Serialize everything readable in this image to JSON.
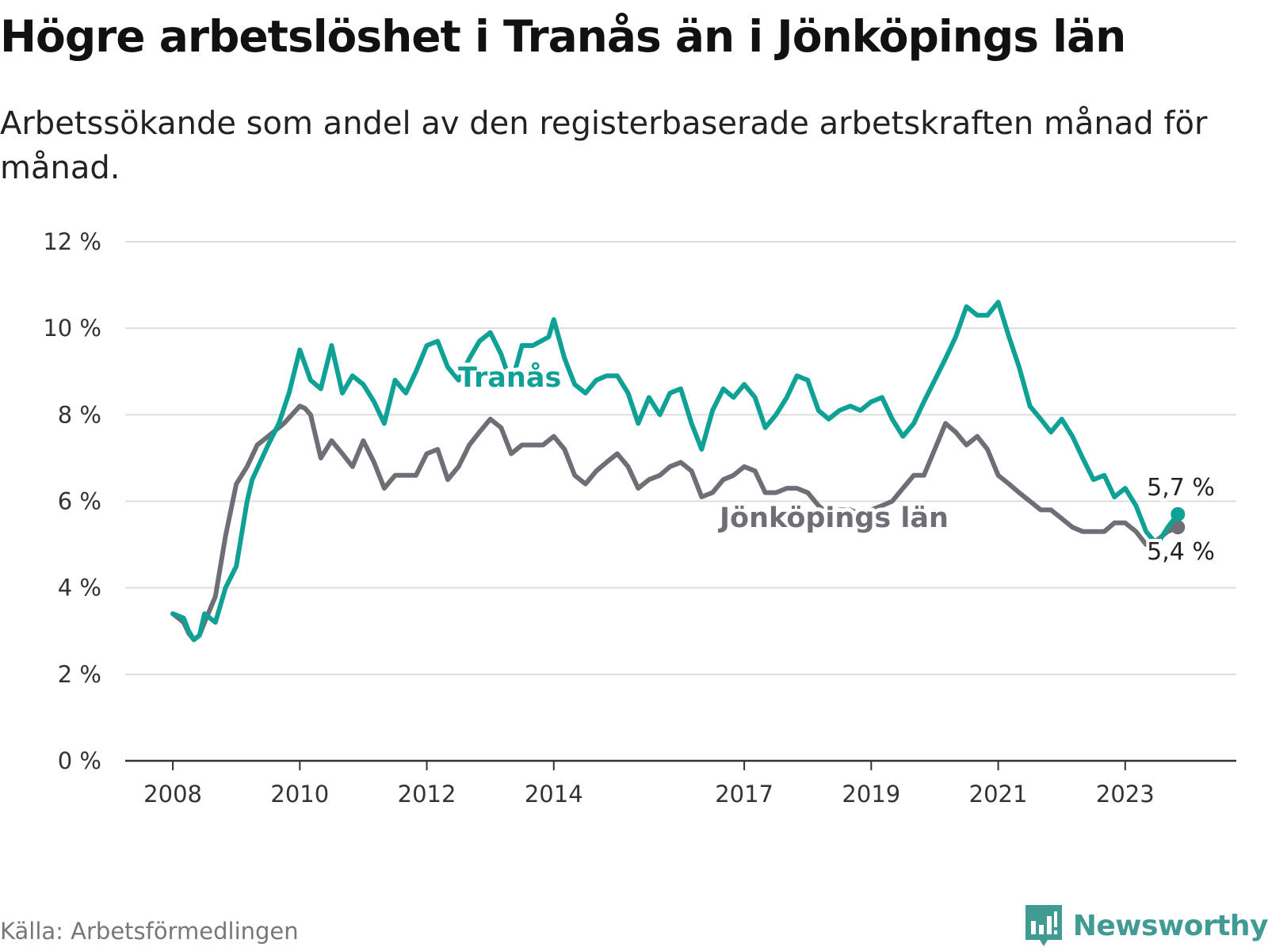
{
  "title": "Högre arbetslöshet i Tranås än i Jönköpings län",
  "subtitle": "Arbetssökande som andel av den registerbaserade arbetskraften månad för månad.",
  "source": "Källa: Arbetsförmedlingen",
  "brand": "Newsworthy",
  "icons": [
    "newsworthy-logo-icon"
  ],
  "colors": {
    "tranas": "#0fa196",
    "jonkoping": "#6e6e76",
    "grid": "#dddddd",
    "axis": "#333333",
    "brand": "#3f9b94"
  },
  "chart_data": {
    "type": "line",
    "title": "Högre arbetslöshet i Tranås än i Jönköpings län",
    "xlabel": "",
    "ylabel": "",
    "ylim": [
      0,
      12
    ],
    "xlim": [
      2007.25,
      2024.75
    ],
    "yticks": [
      0,
      2,
      4,
      6,
      8,
      10,
      12
    ],
    "ytick_labels": [
      "0 %",
      "2 %",
      "4 %",
      "6 %",
      "8 %",
      "10 %",
      "12 %"
    ],
    "xticks": [
      2008,
      2010,
      2012,
      2014,
      2017,
      2019,
      2021,
      2023
    ],
    "xtick_labels": [
      "2008",
      "2010",
      "2012",
      "2014",
      "2017",
      "2019",
      "2021",
      "2023"
    ],
    "series": [
      {
        "name": "Jönköpings län",
        "label": "Jönköpings län",
        "end_label": "5,4 %",
        "x": [
          2008.0,
          2008.17,
          2008.25,
          2008.33,
          2008.42,
          2008.5,
          2008.67,
          2008.83,
          2009.0,
          2009.17,
          2009.33,
          2009.5,
          2009.75,
          2010.0,
          2010.08,
          2010.17,
          2010.33,
          2010.5,
          2010.67,
          2010.83,
          2011.0,
          2011.17,
          2011.33,
          2011.5,
          2011.67,
          2011.83,
          2012.0,
          2012.17,
          2012.33,
          2012.5,
          2012.67,
          2012.83,
          2013.0,
          2013.17,
          2013.33,
          2013.5,
          2013.67,
          2013.83,
          2014.0,
          2014.17,
          2014.33,
          2014.5,
          2014.67,
          2014.83,
          2015.0,
          2015.17,
          2015.33,
          2015.5,
          2015.67,
          2015.83,
          2016.0,
          2016.17,
          2016.33,
          2016.5,
          2016.67,
          2016.83,
          2017.0,
          2017.17,
          2017.33,
          2017.5,
          2017.67,
          2017.83,
          2018.0,
          2018.17,
          2018.33,
          2018.5,
          2018.67,
          2018.83,
          2019.0,
          2019.17,
          2019.33,
          2019.5,
          2019.67,
          2019.83,
          2020.0,
          2020.17,
          2020.33,
          2020.5,
          2020.67,
          2020.83,
          2021.0,
          2021.17,
          2021.33,
          2021.5,
          2021.67,
          2021.83,
          2022.0,
          2022.17,
          2022.33,
          2022.5,
          2022.67,
          2022.83,
          2023.0,
          2023.17,
          2023.33,
          2023.5,
          2023.67,
          2023.83
        ],
        "values": [
          3.4,
          3.2,
          2.95,
          2.8,
          2.9,
          3.2,
          3.8,
          5.2,
          6.4,
          6.8,
          7.3,
          7.5,
          7.8,
          8.2,
          8.15,
          8.0,
          7.0,
          7.4,
          7.1,
          6.8,
          7.4,
          6.9,
          6.3,
          6.6,
          6.6,
          6.6,
          7.1,
          7.2,
          6.5,
          6.8,
          7.3,
          7.6,
          7.9,
          7.7,
          7.1,
          7.3,
          7.3,
          7.3,
          7.5,
          7.2,
          6.6,
          6.4,
          6.7,
          6.9,
          7.1,
          6.8,
          6.3,
          6.5,
          6.6,
          6.8,
          6.9,
          6.7,
          6.1,
          6.2,
          6.5,
          6.6,
          6.8,
          6.7,
          6.2,
          6.2,
          6.3,
          6.3,
          6.2,
          5.9,
          5.7,
          5.8,
          5.8,
          5.7,
          5.8,
          5.9,
          6.0,
          6.3,
          6.6,
          6.6,
          7.2,
          7.8,
          7.6,
          7.3,
          7.5,
          7.2,
          6.6,
          6.4,
          6.2,
          6.0,
          5.8,
          5.8,
          5.6,
          5.4,
          5.3,
          5.3,
          5.3,
          5.5,
          5.5,
          5.3,
          5.0,
          5.1,
          5.3,
          5.4
        ]
      },
      {
        "name": "Tranås",
        "label": "Tranås",
        "end_label": "5,7 %",
        "x": [
          2008.0,
          2008.17,
          2008.25,
          2008.33,
          2008.42,
          2008.5,
          2008.67,
          2008.83,
          2009.0,
          2009.17,
          2009.25,
          2009.5,
          2009.67,
          2009.83,
          2010.0,
          2010.17,
          2010.33,
          2010.5,
          2010.67,
          2010.83,
          2011.0,
          2011.17,
          2011.33,
          2011.5,
          2011.67,
          2011.83,
          2012.0,
          2012.17,
          2012.33,
          2012.5,
          2012.67,
          2012.83,
          2013.0,
          2013.17,
          2013.33,
          2013.5,
          2013.67,
          2013.92,
          2014.0,
          2014.17,
          2014.33,
          2014.5,
          2014.67,
          2014.83,
          2015.0,
          2015.17,
          2015.33,
          2015.5,
          2015.67,
          2015.83,
          2016.0,
          2016.17,
          2016.33,
          2016.5,
          2016.67,
          2016.83,
          2017.0,
          2017.17,
          2017.33,
          2017.5,
          2017.67,
          2017.83,
          2018.0,
          2018.17,
          2018.33,
          2018.5,
          2018.67,
          2018.83,
          2019.0,
          2019.17,
          2019.33,
          2019.5,
          2019.67,
          2019.83,
          2020.0,
          2020.17,
          2020.33,
          2020.5,
          2020.67,
          2020.83,
          2021.0,
          2021.17,
          2021.33,
          2021.5,
          2021.67,
          2021.83,
          2022.0,
          2022.17,
          2022.33,
          2022.5,
          2022.67,
          2022.83,
          2023.0,
          2023.17,
          2023.33,
          2023.5,
          2023.67,
          2023.83
        ],
        "values": [
          3.4,
          3.3,
          3.0,
          2.8,
          2.9,
          3.4,
          3.2,
          4.0,
          4.5,
          6.0,
          6.5,
          7.3,
          7.8,
          8.5,
          9.5,
          8.8,
          8.6,
          9.6,
          8.5,
          8.9,
          8.7,
          8.3,
          7.8,
          8.8,
          8.5,
          9.0,
          9.6,
          9.7,
          9.1,
          8.8,
          9.3,
          9.7,
          9.9,
          9.4,
          8.7,
          9.6,
          9.6,
          9.8,
          10.2,
          9.3,
          8.7,
          8.5,
          8.8,
          8.9,
          8.9,
          8.5,
          7.8,
          8.4,
          8.0,
          8.5,
          8.6,
          7.8,
          7.2,
          8.1,
          8.6,
          8.4,
          8.7,
          8.4,
          7.7,
          8.0,
          8.4,
          8.9,
          8.8,
          8.1,
          7.9,
          8.1,
          8.2,
          8.1,
          8.3,
          8.4,
          7.9,
          7.5,
          7.8,
          8.3,
          8.8,
          9.3,
          9.8,
          10.5,
          10.3,
          10.3,
          10.6,
          9.8,
          9.1,
          8.2,
          7.9,
          7.6,
          7.9,
          7.5,
          7.0,
          6.5,
          6.6,
          6.1,
          6.3,
          5.9,
          5.3,
          5.0,
          5.4,
          5.7
        ]
      }
    ]
  }
}
